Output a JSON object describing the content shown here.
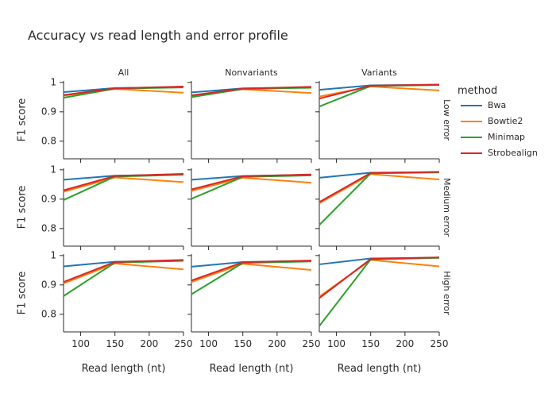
{
  "chart_data": {
    "type": "line",
    "title": "Accuracy vs read length and error profile",
    "xlabel": "Read length (nt)",
    "ylabel": "F1 score",
    "x": [
      75,
      150,
      250
    ],
    "xlim": [
      75,
      250
    ],
    "xticks": [
      100,
      150,
      200,
      250
    ],
    "ylim": [
      0.74,
      1.005
    ],
    "yticks": [
      0.8,
      0.9,
      1
    ],
    "legend_title": "method",
    "legend_position": "right",
    "grid": false,
    "col_facets": [
      "All",
      "Nonvariants",
      "Variants"
    ],
    "row_facets": [
      "Low error",
      "Medium error",
      "High error"
    ],
    "series": [
      {
        "name": "Bwa",
        "color": "#1f77b4"
      },
      {
        "name": "Bowtie2",
        "color": "#ff7f0e"
      },
      {
        "name": "Minimap",
        "color": "#2ca02c"
      },
      {
        "name": "Strobealign",
        "color": "#d62728"
      }
    ],
    "panels": [
      {
        "row": 0,
        "col": 0,
        "values": {
          "Bwa": [
            0.967,
            0.981,
            0.984
          ],
          "Bowtie2": [
            0.955,
            0.978,
            0.965
          ],
          "Minimap": [
            0.948,
            0.979,
            0.983
          ],
          "Strobealign": [
            0.957,
            0.98,
            0.986
          ]
        }
      },
      {
        "row": 0,
        "col": 1,
        "values": {
          "Bwa": [
            0.966,
            0.98,
            0.983
          ],
          "Bowtie2": [
            0.954,
            0.977,
            0.964
          ],
          "Minimap": [
            0.95,
            0.978,
            0.982
          ],
          "Strobealign": [
            0.956,
            0.979,
            0.985
          ]
        }
      },
      {
        "row": 0,
        "col": 2,
        "values": {
          "Bwa": [
            0.975,
            0.99,
            0.992
          ],
          "Bowtie2": [
            0.952,
            0.986,
            0.973
          ],
          "Minimap": [
            0.918,
            0.988,
            0.991
          ],
          "Strobealign": [
            0.945,
            0.989,
            0.993
          ]
        }
      },
      {
        "row": 1,
        "col": 0,
        "values": {
          "Bwa": [
            0.966,
            0.98,
            0.984
          ],
          "Bowtie2": [
            0.925,
            0.974,
            0.958
          ],
          "Minimap": [
            0.897,
            0.977,
            0.983
          ],
          "Strobealign": [
            0.93,
            0.979,
            0.986
          ]
        }
      },
      {
        "row": 1,
        "col": 1,
        "values": {
          "Bwa": [
            0.966,
            0.979,
            0.983
          ],
          "Bowtie2": [
            0.928,
            0.973,
            0.956
          ],
          "Minimap": [
            0.901,
            0.976,
            0.981
          ],
          "Strobealign": [
            0.933,
            0.978,
            0.984
          ]
        }
      },
      {
        "row": 1,
        "col": 2,
        "values": {
          "Bwa": [
            0.973,
            0.99,
            0.992
          ],
          "Bowtie2": [
            0.886,
            0.985,
            0.967
          ],
          "Minimap": [
            0.812,
            0.988,
            0.991
          ],
          "Strobealign": [
            0.89,
            0.989,
            0.993
          ]
        }
      },
      {
        "row": 2,
        "col": 0,
        "values": {
          "Bwa": [
            0.963,
            0.979,
            0.983
          ],
          "Bowtie2": [
            0.905,
            0.973,
            0.953
          ],
          "Minimap": [
            0.862,
            0.976,
            0.982
          ],
          "Strobealign": [
            0.91,
            0.978,
            0.985
          ]
        }
      },
      {
        "row": 2,
        "col": 1,
        "values": {
          "Bwa": [
            0.962,
            0.978,
            0.982
          ],
          "Bowtie2": [
            0.91,
            0.972,
            0.951
          ],
          "Minimap": [
            0.868,
            0.975,
            0.98
          ],
          "Strobealign": [
            0.915,
            0.977,
            0.983
          ]
        }
      },
      {
        "row": 2,
        "col": 2,
        "values": {
          "Bwa": [
            0.97,
            0.99,
            0.993
          ],
          "Bowtie2": [
            0.86,
            0.985,
            0.963
          ],
          "Minimap": [
            0.76,
            0.987,
            0.992
          ],
          "Strobealign": [
            0.855,
            0.988,
            0.994
          ]
        }
      }
    ]
  }
}
